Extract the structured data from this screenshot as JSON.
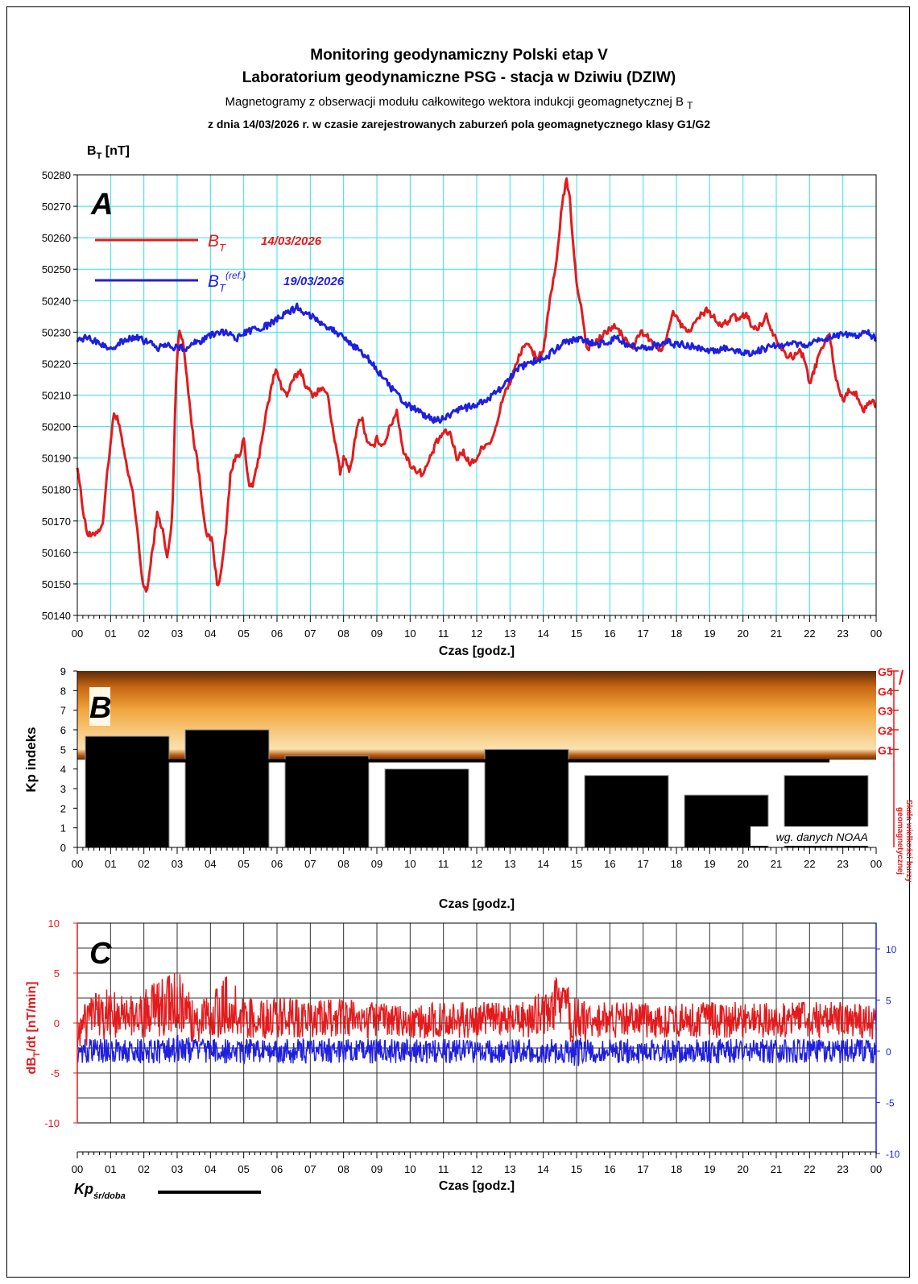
{
  "header": {
    "title1": "Monitoring geodynamiczny Polski etap V",
    "title2": "Laboratorium geodynamiczne PSG - stacja w Dziwiu (DZIW)",
    "subtitle_main": "Magnetogramy z obserwacji modułu całkowitego wektora indukcji geomagnetycznej B",
    "subtitle_sub": "T",
    "subtitle2": "z dnia 14/03/2026 r. w czasie zarejestrowanych zaburzeń pola geomagnetycznego klasy G1/G2"
  },
  "panels": {
    "A": {
      "letter": "A",
      "ylabel_main": "B",
      "ylabel_sub": "T",
      "ylabel_unit": " [nT]",
      "xlabel": "Czas [godz.]",
      "legend": [
        {
          "symbol": "B",
          "sub": "T",
          "sup": "",
          "date": "14/03/2026",
          "color": "#e41a1c"
        },
        {
          "symbol": "B",
          "sub": "T",
          "sup": "(ref.)",
          "date": "19/03/2026",
          "color": "#1f1fe0"
        }
      ]
    },
    "B": {
      "letter": "B",
      "ylabel": "Kp indeks",
      "xlabel": "Czas [godz.]",
      "note": "wg. danych NOAA",
      "scale_title_1": "Skala wielkości burzy",
      "scale_title_2": "geomagnetycznej",
      "storm_labels": [
        "G1",
        "G2",
        "G3",
        "G4",
        "G5"
      ]
    },
    "C": {
      "letter": "C",
      "ylabel_left_main": "dB",
      "ylabel_left_sub": "T",
      "ylabel_left_unit": "/dt [nT/min]",
      "xlabel": "Czas [godz.]",
      "kp_legend_main": "Kp",
      "kp_legend_sub": "śr/doba"
    }
  },
  "colors": {
    "red": "#e41a1c",
    "blue": "#1f1fe0",
    "grid_a": "#33e0ea",
    "bars": "#000000",
    "storm_dark": "#6b2f0a",
    "storm_mid": "#e8841e",
    "storm_light": "#fbe2b0"
  },
  "chart_data": [
    {
      "panel": "A",
      "type": "line",
      "xlabel": "Czas [godz.]",
      "ylabel": "BT [nT]",
      "xlim": [
        0,
        24
      ],
      "ylim": [
        50140,
        50280
      ],
      "x_tick_labels": [
        "00",
        "01",
        "02",
        "03",
        "04",
        "05",
        "06",
        "07",
        "08",
        "09",
        "10",
        "11",
        "12",
        "13",
        "14",
        "15",
        "16",
        "17",
        "18",
        "19",
        "20",
        "21",
        "22",
        "23",
        "00"
      ],
      "y_ticks": [
        50140,
        50150,
        50160,
        50170,
        50180,
        50190,
        50200,
        50210,
        50220,
        50230,
        50240,
        50250,
        50260,
        50270,
        50280
      ],
      "grid": true,
      "legend_position": "top-left",
      "series": [
        {
          "name": "BT 14/03/2026",
          "color": "#e41a1c",
          "x": [
            0,
            0.15,
            0.3,
            0.45,
            0.6,
            0.75,
            0.85,
            1.0,
            1.1,
            1.2,
            1.35,
            1.5,
            1.65,
            1.8,
            1.95,
            2.1,
            2.25,
            2.4,
            2.55,
            2.7,
            2.85,
            2.95,
            3.05,
            3.2,
            3.35,
            3.5,
            3.6,
            3.75,
            3.9,
            4.05,
            4.2,
            4.3,
            4.45,
            4.6,
            4.75,
            4.9,
            5.0,
            5.15,
            5.3,
            5.45,
            5.6,
            5.75,
            5.9,
            6.0,
            6.15,
            6.3,
            6.5,
            6.7,
            6.9,
            7.1,
            7.3,
            7.5,
            7.7,
            7.9,
            8.0,
            8.2,
            8.4,
            8.55,
            8.7,
            8.85,
            9.0,
            9.2,
            9.4,
            9.6,
            9.8,
            10.0,
            10.2,
            10.4,
            10.6,
            10.8,
            11.0,
            11.2,
            11.4,
            11.6,
            11.8,
            12.0,
            12.2,
            12.4,
            12.6,
            12.8,
            13.0,
            13.2,
            13.4,
            13.6,
            13.8,
            14.0,
            14.2,
            14.4,
            14.55,
            14.7,
            14.8,
            14.9,
            15.0,
            15.15,
            15.3,
            15.5,
            15.7,
            15.9,
            16.1,
            16.3,
            16.5,
            16.7,
            16.9,
            17.1,
            17.3,
            17.5,
            17.7,
            17.9,
            18.1,
            18.3,
            18.5,
            18.7,
            18.9,
            19.1,
            19.3,
            19.5,
            19.7,
            19.9,
            20.1,
            20.3,
            20.5,
            20.7,
            20.9,
            21.1,
            21.3,
            21.5,
            21.7,
            21.85,
            22.0,
            22.2,
            22.4,
            22.6,
            22.8,
            23.0,
            23.2,
            23.4,
            23.6,
            23.8,
            24.0
          ],
          "y": [
            50188,
            50175,
            50166,
            50165,
            50167,
            50168,
            50180,
            50195,
            50204,
            50203,
            50195,
            50186,
            50180,
            50168,
            50150,
            50148,
            50160,
            50172,
            50168,
            50158,
            50170,
            50210,
            50232,
            50225,
            50210,
            50195,
            50190,
            50176,
            50165,
            50164,
            50150,
            50152,
            50165,
            50185,
            50190,
            50192,
            50196,
            50181,
            50182,
            50190,
            50200,
            50208,
            50216,
            50218,
            50212,
            50210,
            50215,
            50218,
            50212,
            50210,
            50212,
            50211,
            50198,
            50185,
            50190,
            50186,
            50200,
            50203,
            50195,
            50193,
            50196,
            50194,
            50200,
            50205,
            50192,
            50188,
            50186,
            50185,
            50190,
            50195,
            50198,
            50198,
            50190,
            50192,
            50188,
            50190,
            50194,
            50195,
            50200,
            50210,
            50214,
            50220,
            50226,
            50225,
            50222,
            50224,
            50240,
            50252,
            50270,
            50278,
            50272,
            50258,
            50245,
            50238,
            50225,
            50226,
            50228,
            50230,
            50232,
            50230,
            50227,
            50225,
            50230,
            50229,
            50226,
            50224,
            50228,
            50236,
            50233,
            50230,
            50232,
            50235,
            50237,
            50235,
            50232,
            50233,
            50235,
            50234,
            50236,
            50231,
            50232,
            50235,
            50230,
            50226,
            50223,
            50222,
            50224,
            50222,
            50213,
            50220,
            50226,
            50229,
            50215,
            50208,
            50212,
            50210,
            50205,
            50208,
            50207
          ],
          "line_width": 3
        },
        {
          "name": "BT(ref.) 19/03/2026",
          "color": "#1f1fe0",
          "x": [
            0,
            0.3,
            0.6,
            0.9,
            1.2,
            1.5,
            1.8,
            2.1,
            2.4,
            2.7,
            3.0,
            3.3,
            3.6,
            3.9,
            4.2,
            4.5,
            4.8,
            5.1,
            5.4,
            5.7,
            6.0,
            6.3,
            6.6,
            6.9,
            7.2,
            7.5,
            7.8,
            8.1,
            8.4,
            8.7,
            9.0,
            9.3,
            9.6,
            9.9,
            10.2,
            10.5,
            10.8,
            11.1,
            11.4,
            11.7,
            12.0,
            12.3,
            12.6,
            12.9,
            13.2,
            13.5,
            13.8,
            14.1,
            14.4,
            14.7,
            15.0,
            15.3,
            15.6,
            15.9,
            16.2,
            16.5,
            16.8,
            17.1,
            17.4,
            17.7,
            18.0,
            18.3,
            18.6,
            18.9,
            19.2,
            19.5,
            19.8,
            20.1,
            20.4,
            20.7,
            21.0,
            21.3,
            21.6,
            21.9,
            22.2,
            22.5,
            22.8,
            23.1,
            23.4,
            23.7,
            24.0
          ],
          "y": [
            50228,
            50228,
            50227,
            50225,
            50226,
            50228,
            50228,
            50227,
            50225,
            50226,
            50225,
            50225,
            50227,
            50228,
            50230,
            50230,
            50228,
            50230,
            50231,
            50232,
            50234,
            50236,
            50238,
            50236,
            50234,
            50232,
            50230,
            50227,
            50225,
            50222,
            50218,
            50214,
            50210,
            50207,
            50205,
            50203,
            50202,
            50203,
            50205,
            50206,
            50207,
            50208,
            50211,
            50214,
            50218,
            50220,
            50221,
            50222,
            50225,
            50227,
            50228,
            50227,
            50226,
            50227,
            50228,
            50226,
            50225,
            50225,
            50226,
            50227,
            50226,
            50226,
            50225,
            50224,
            50224,
            50225,
            50224,
            50223,
            50224,
            50225,
            50226,
            50226,
            50226,
            50226,
            50227,
            50228,
            50229,
            50229,
            50229,
            50230,
            50228
          ],
          "line_width": 3
        }
      ]
    },
    {
      "panel": "B",
      "type": "bar",
      "xlabel": "Czas [godz.]",
      "ylabel": "Kp indeks",
      "xlim": [
        0,
        24
      ],
      "ylim": [
        0,
        9
      ],
      "y_ticks": [
        0,
        1,
        2,
        3,
        4,
        5,
        6,
        7,
        8,
        9
      ],
      "bars": [
        {
          "start": 0,
          "end": 3,
          "value": 5.67
        },
        {
          "start": 3,
          "end": 6,
          "value": 6.0
        },
        {
          "start": 6,
          "end": 9,
          "value": 4.67
        },
        {
          "start": 9,
          "end": 12,
          "value": 4.0
        },
        {
          "start": 12,
          "end": 15,
          "value": 5.0
        },
        {
          "start": 15,
          "end": 18,
          "value": 3.67
        },
        {
          "start": 18,
          "end": 21,
          "value": 2.67
        },
        {
          "start": 21,
          "end": 24,
          "value": 3.67
        }
      ],
      "kp_daily_mean": 4.42,
      "kp_mean_extent": [
        2.1,
        22.6
      ],
      "storm_levels": [
        {
          "name": "G1",
          "kp": 5
        },
        {
          "name": "G2",
          "kp": 6
        },
        {
          "name": "G3",
          "kp": 7
        },
        {
          "name": "G4",
          "kp": 8
        },
        {
          "name": "G5",
          "kp": 9
        }
      ]
    },
    {
      "panel": "C",
      "type": "line",
      "xlabel": "Czas [godz.]",
      "ylabel": "dBT/dt [nT/min]",
      "xlim": [
        0,
        24
      ],
      "ylim_left": [
        -10,
        10
      ],
      "ylim_right": [
        -10,
        10
      ],
      "y_ticks_left": [
        -10,
        -5,
        0,
        5,
        10
      ],
      "y_ticks_right": [
        -10,
        -5,
        0,
        5,
        10
      ],
      "series": [
        {
          "name": "dBT/dt 14/03/2026",
          "color": "#e41a1c",
          "axis": "left",
          "x": [
            0,
            0.5,
            1,
            1.5,
            2,
            2.5,
            3,
            3.5,
            4,
            4.5,
            5,
            5.5,
            6,
            6.5,
            7,
            7.5,
            8,
            8.5,
            9,
            9.5,
            10,
            10.5,
            11,
            11.5,
            12,
            12.5,
            13,
            13.5,
            14,
            14.5,
            15,
            15.5,
            16,
            16.5,
            17,
            17.5,
            18,
            18.5,
            19,
            19.5,
            20,
            20.5,
            21,
            21.5,
            22,
            22.5,
            23,
            23.5,
            24
          ],
          "y": [
            -1,
            0.5,
            1,
            0.5,
            1,
            1.5,
            2.5,
            0,
            0.5,
            2,
            0.5,
            0.5,
            0.5,
            0.5,
            0.5,
            0.5,
            0.5,
            0.3,
            0.3,
            0.3,
            0.3,
            0.3,
            0.3,
            0.3,
            0.3,
            0.3,
            0.3,
            0.5,
            1,
            2,
            0,
            0.3,
            0.3,
            0.3,
            0.3,
            0.3,
            0.3,
            0.3,
            0.3,
            0.3,
            0.3,
            0.3,
            0.3,
            0.3,
            0.3,
            0.3,
            0.3,
            0.3,
            0
          ],
          "amplitude": [
            2,
            2.5,
            2.5,
            2,
            2.5,
            3,
            3,
            2.2,
            2.5,
            3,
            2,
            2,
            2,
            2,
            2,
            2,
            2,
            1.8,
            1.8,
            1.8,
            1.8,
            1.8,
            1.8,
            1.8,
            1.8,
            1.8,
            1.8,
            2,
            2.2,
            3,
            2.5,
            1.8,
            1.8,
            1.8,
            1.8,
            1.8,
            1.8,
            1.8,
            1.8,
            1.8,
            1.8,
            1.8,
            1.8,
            1.8,
            1.8,
            1.8,
            1.8,
            1.8,
            1.8
          ]
        },
        {
          "name": "dBT/dt 19/03/2026",
          "color": "#1f1fe0",
          "axis": "right",
          "x": [
            0,
            0.5,
            1,
            1.5,
            2,
            2.5,
            3,
            3.5,
            4,
            4.5,
            5,
            5.5,
            6,
            6.5,
            7,
            7.5,
            8,
            8.5,
            9,
            9.5,
            10,
            10.5,
            11,
            11.5,
            12,
            12.5,
            13,
            13.5,
            14,
            14.5,
            15,
            15.5,
            16,
            16.5,
            17,
            17.5,
            18,
            18.5,
            19,
            19.5,
            20,
            20.5,
            21,
            21.5,
            22,
            22.5,
            23,
            23.5,
            24
          ],
          "y": [
            0,
            0,
            0,
            0,
            0,
            0,
            0.2,
            0,
            0,
            0,
            0,
            0,
            0,
            0,
            0,
            0,
            0,
            0,
            0,
            0,
            0,
            0,
            0,
            0,
            0,
            0,
            0,
            0,
            0,
            0,
            0,
            0,
            0,
            0,
            0,
            0,
            0,
            0,
            0,
            0,
            0,
            0,
            0,
            0,
            0,
            0,
            0,
            0,
            0
          ],
          "amplitude": [
            1.2,
            1.2,
            1.2,
            1.2,
            1.2,
            1.2,
            1.6,
            1.2,
            1.2,
            1.2,
            1.2,
            1.2,
            1.2,
            1.2,
            1.2,
            1.2,
            1.2,
            1.2,
            1.2,
            1.2,
            1.2,
            1.2,
            1.2,
            1.2,
            1.2,
            1.2,
            1.2,
            1.2,
            1.2,
            1.2,
            1.5,
            1.2,
            1.2,
            1.2,
            1.2,
            1.2,
            1.2,
            1.2,
            1.2,
            1.2,
            1.2,
            1.2,
            1.2,
            1.2,
            1.2,
            1.2,
            1.2,
            1.2,
            1.2
          ]
        }
      ]
    }
  ]
}
